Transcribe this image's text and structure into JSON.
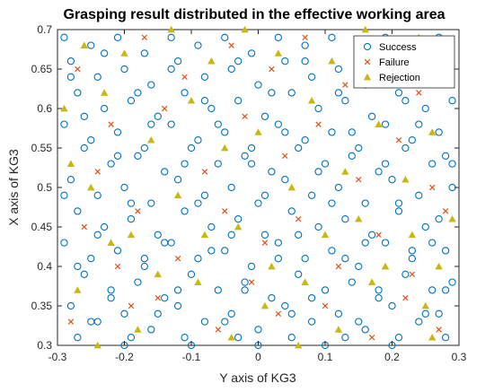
{
  "chart_data": {
    "type": "scatter",
    "title": "Grasping result distributed in the effective working area",
    "xlabel": "Y axis of KG3",
    "ylabel": "X axis of KG3",
    "xlim": [
      -0.3,
      0.3
    ],
    "ylim": [
      0.3,
      0.7
    ],
    "xticks": [
      "-0.3",
      "-0.2",
      "-0.1",
      "0",
      "0.1",
      "0.2",
      "0.3"
    ],
    "yticks": [
      "0.3",
      "0.35",
      "0.4",
      "0.45",
      "0.5",
      "0.55",
      "0.6",
      "0.65",
      "0.7"
    ],
    "grid": false,
    "legend_position": "top-right",
    "series": [
      {
        "name": "Success",
        "marker": "circle",
        "color": "#0072BD",
        "points": [
          [
            -0.29,
            0.69
          ],
          [
            -0.28,
            0.66
          ],
          [
            -0.27,
            0.62
          ],
          [
            -0.29,
            0.58
          ],
          [
            -0.26,
            0.55
          ],
          [
            -0.28,
            0.51
          ],
          [
            -0.27,
            0.47
          ],
          [
            -0.29,
            0.43
          ],
          [
            -0.26,
            0.39
          ],
          [
            -0.28,
            0.35
          ],
          [
            -0.27,
            0.31
          ],
          [
            -0.25,
            0.68
          ],
          [
            -0.24,
            0.64
          ],
          [
            -0.23,
            0.6
          ],
          [
            -0.25,
            0.56
          ],
          [
            -0.22,
            0.53
          ],
          [
            -0.24,
            0.49
          ],
          [
            -0.23,
            0.45
          ],
          [
            -0.25,
            0.41
          ],
          [
            -0.22,
            0.37
          ],
          [
            -0.24,
            0.33
          ],
          [
            -0.21,
            0.69
          ],
          [
            -0.2,
            0.65
          ],
          [
            -0.19,
            0.61
          ],
          [
            -0.21,
            0.57
          ],
          [
            -0.18,
            0.54
          ],
          [
            -0.2,
            0.5
          ],
          [
            -0.19,
            0.46
          ],
          [
            -0.21,
            0.42
          ],
          [
            -0.18,
            0.38
          ],
          [
            -0.2,
            0.34
          ],
          [
            -0.19,
            0.31
          ],
          [
            -0.17,
            0.67
          ],
          [
            -0.16,
            0.63
          ],
          [
            -0.15,
            0.59
          ],
          [
            -0.17,
            0.55
          ],
          [
            -0.14,
            0.52
          ],
          [
            -0.16,
            0.48
          ],
          [
            -0.15,
            0.44
          ],
          [
            -0.17,
            0.4
          ],
          [
            -0.14,
            0.36
          ],
          [
            -0.16,
            0.32
          ],
          [
            -0.13,
            0.69
          ],
          [
            -0.12,
            0.66
          ],
          [
            -0.11,
            0.62
          ],
          [
            -0.13,
            0.58
          ],
          [
            -0.1,
            0.55
          ],
          [
            -0.12,
            0.51
          ],
          [
            -0.11,
            0.47
          ],
          [
            -0.13,
            0.43
          ],
          [
            -0.1,
            0.39
          ],
          [
            -0.12,
            0.35
          ],
          [
            -0.11,
            0.31
          ],
          [
            -0.09,
            0.68
          ],
          [
            -0.08,
            0.64
          ],
          [
            -0.07,
            0.6
          ],
          [
            -0.09,
            0.56
          ],
          [
            -0.06,
            0.53
          ],
          [
            -0.08,
            0.49
          ],
          [
            -0.07,
            0.45
          ],
          [
            -0.09,
            0.41
          ],
          [
            -0.06,
            0.37
          ],
          [
            -0.08,
            0.33
          ],
          [
            -0.05,
            0.69
          ],
          [
            -0.04,
            0.65
          ],
          [
            -0.03,
            0.61
          ],
          [
            -0.05,
            0.57
          ],
          [
            -0.02,
            0.54
          ],
          [
            -0.04,
            0.5
          ],
          [
            -0.03,
            0.46
          ],
          [
            -0.05,
            0.42
          ],
          [
            -0.02,
            0.38
          ],
          [
            -0.04,
            0.34
          ],
          [
            -0.03,
            0.31
          ],
          [
            -0.01,
            0.67
          ],
          [
            0.0,
            0.63
          ],
          [
            0.01,
            0.59
          ],
          [
            -0.01,
            0.55
          ],
          [
            0.02,
            0.52
          ],
          [
            0.0,
            0.48
          ],
          [
            0.01,
            0.44
          ],
          [
            -0.01,
            0.4
          ],
          [
            0.02,
            0.36
          ],
          [
            0.0,
            0.32
          ],
          [
            0.03,
            0.69
          ],
          [
            0.04,
            0.66
          ],
          [
            0.05,
            0.62
          ],
          [
            0.03,
            0.58
          ],
          [
            0.06,
            0.55
          ],
          [
            0.04,
            0.51
          ],
          [
            0.05,
            0.47
          ],
          [
            0.03,
            0.43
          ],
          [
            0.06,
            0.39
          ],
          [
            0.04,
            0.35
          ],
          [
            0.05,
            0.31
          ],
          [
            0.07,
            0.68
          ],
          [
            0.08,
            0.64
          ],
          [
            0.09,
            0.6
          ],
          [
            0.07,
            0.56
          ],
          [
            0.1,
            0.53
          ],
          [
            0.08,
            0.49
          ],
          [
            0.09,
            0.45
          ],
          [
            0.07,
            0.41
          ],
          [
            0.1,
            0.37
          ],
          [
            0.08,
            0.33
          ],
          [
            0.11,
            0.69
          ],
          [
            0.12,
            0.65
          ],
          [
            0.13,
            0.61
          ],
          [
            0.11,
            0.57
          ],
          [
            0.14,
            0.54
          ],
          [
            0.12,
            0.5
          ],
          [
            0.13,
            0.46
          ],
          [
            0.11,
            0.42
          ],
          [
            0.14,
            0.38
          ],
          [
            0.12,
            0.34
          ],
          [
            0.13,
            0.31
          ],
          [
            0.15,
            0.67
          ],
          [
            0.16,
            0.63
          ],
          [
            0.17,
            0.59
          ],
          [
            0.15,
            0.55
          ],
          [
            0.18,
            0.52
          ],
          [
            0.16,
            0.48
          ],
          [
            0.17,
            0.44
          ],
          [
            0.15,
            0.4
          ],
          [
            0.18,
            0.36
          ],
          [
            0.16,
            0.32
          ],
          [
            0.19,
            0.69
          ],
          [
            0.2,
            0.66
          ],
          [
            0.21,
            0.62
          ],
          [
            0.19,
            0.58
          ],
          [
            0.22,
            0.55
          ],
          [
            0.2,
            0.51
          ],
          [
            0.21,
            0.47
          ],
          [
            0.19,
            0.43
          ],
          [
            0.22,
            0.39
          ],
          [
            0.2,
            0.35
          ],
          [
            0.21,
            0.31
          ],
          [
            0.23,
            0.68
          ],
          [
            0.24,
            0.64
          ],
          [
            0.25,
            0.6
          ],
          [
            0.23,
            0.56
          ],
          [
            0.26,
            0.53
          ],
          [
            0.24,
            0.49
          ],
          [
            0.25,
            0.45
          ],
          [
            0.23,
            0.41
          ],
          [
            0.26,
            0.37
          ],
          [
            0.24,
            0.33
          ],
          [
            0.27,
            0.69
          ],
          [
            0.28,
            0.65
          ],
          [
            0.29,
            0.61
          ],
          [
            0.27,
            0.57
          ],
          [
            0.28,
            0.54
          ],
          [
            0.29,
            0.5
          ],
          [
            0.27,
            0.46
          ],
          [
            0.28,
            0.42
          ],
          [
            0.29,
            0.38
          ],
          [
            0.27,
            0.34
          ],
          [
            0.28,
            0.31
          ],
          [
            -0.28,
            0.64
          ],
          [
            -0.23,
            0.67
          ],
          [
            -0.18,
            0.62
          ],
          [
            -0.13,
            0.65
          ],
          [
            -0.08,
            0.61
          ],
          [
            -0.03,
            0.66
          ],
          [
            0.02,
            0.62
          ],
          [
            0.07,
            0.66
          ],
          [
            0.12,
            0.62
          ],
          [
            0.17,
            0.65
          ],
          [
            0.22,
            0.61
          ],
          [
            0.27,
            0.66
          ],
          [
            -0.26,
            0.59
          ],
          [
            -0.21,
            0.54
          ],
          [
            -0.16,
            0.58
          ],
          [
            -0.11,
            0.53
          ],
          [
            -0.06,
            0.58
          ],
          [
            -0.01,
            0.53
          ],
          [
            0.04,
            0.57
          ],
          [
            0.09,
            0.52
          ],
          [
            0.14,
            0.57
          ],
          [
            0.19,
            0.53
          ],
          [
            0.24,
            0.58
          ],
          [
            0.29,
            0.53
          ],
          [
            -0.29,
            0.49
          ],
          [
            -0.24,
            0.44
          ],
          [
            -0.19,
            0.48
          ],
          [
            -0.14,
            0.43
          ],
          [
            -0.09,
            0.48
          ],
          [
            -0.04,
            0.44
          ],
          [
            0.01,
            0.49
          ],
          [
            0.06,
            0.44
          ],
          [
            0.11,
            0.48
          ],
          [
            0.16,
            0.43
          ],
          [
            0.21,
            0.48
          ],
          [
            0.26,
            0.43
          ],
          [
            -0.27,
            0.4
          ],
          [
            -0.22,
            0.36
          ],
          [
            -0.17,
            0.41
          ],
          [
            -0.12,
            0.37
          ],
          [
            -0.07,
            0.42
          ],
          [
            -0.02,
            0.37
          ],
          [
            0.03,
            0.41
          ],
          [
            0.08,
            0.36
          ],
          [
            0.13,
            0.41
          ],
          [
            0.18,
            0.37
          ],
          [
            0.23,
            0.42
          ],
          [
            0.28,
            0.37
          ],
          [
            -0.25,
            0.33
          ],
          [
            -0.2,
            0.3
          ],
          [
            -0.15,
            0.34
          ],
          [
            -0.1,
            0.3
          ],
          [
            -0.05,
            0.33
          ],
          [
            0.0,
            0.3
          ],
          [
            0.05,
            0.34
          ],
          [
            0.1,
            0.3
          ],
          [
            0.15,
            0.33
          ],
          [
            0.2,
            0.3
          ],
          [
            0.25,
            0.34
          ]
        ]
      },
      {
        "name": "Failure",
        "marker": "x",
        "color": "#D95319",
        "points": [
          [
            -0.27,
            0.65
          ],
          [
            -0.22,
            0.58
          ],
          [
            -0.26,
            0.45
          ],
          [
            -0.21,
            0.4
          ],
          [
            -0.28,
            0.33
          ],
          [
            -0.17,
            0.69
          ],
          [
            -0.14,
            0.6
          ],
          [
            -0.18,
            0.47
          ],
          [
            -0.15,
            0.36
          ],
          [
            -0.11,
            0.64
          ],
          [
            -0.08,
            0.52
          ],
          [
            -0.12,
            0.41
          ],
          [
            -0.06,
            0.32
          ],
          [
            -0.04,
            0.68
          ],
          [
            -0.02,
            0.59
          ],
          [
            -0.05,
            0.47
          ],
          [
            -0.01,
            0.38
          ],
          [
            0.02,
            0.65
          ],
          [
            0.04,
            0.54
          ],
          [
            0.01,
            0.43
          ],
          [
            0.03,
            0.34
          ],
          [
            0.07,
            0.69
          ],
          [
            0.09,
            0.58
          ],
          [
            0.06,
            0.46
          ],
          [
            0.1,
            0.35
          ],
          [
            0.13,
            0.63
          ],
          [
            0.15,
            0.51
          ],
          [
            0.12,
            0.4
          ],
          [
            0.17,
            0.31
          ],
          [
            0.19,
            0.67
          ],
          [
            0.21,
            0.56
          ],
          [
            0.18,
            0.44
          ],
          [
            0.22,
            0.36
          ],
          [
            0.24,
            0.62
          ],
          [
            0.26,
            0.5
          ],
          [
            0.23,
            0.39
          ],
          [
            0.28,
            0.47
          ],
          [
            0.27,
            0.32
          ],
          [
            -0.24,
            0.52
          ],
          [
            -0.19,
            0.35
          ]
        ]
      },
      {
        "name": "Rejection",
        "marker": "triangle",
        "color": "#C7B814",
        "points": [
          [
            -0.29,
            0.6
          ],
          [
            -0.26,
            0.68
          ],
          [
            -0.23,
            0.62
          ],
          [
            -0.25,
            0.5
          ],
          [
            -0.22,
            0.43
          ],
          [
            -0.27,
            0.37
          ],
          [
            -0.24,
            0.3
          ],
          [
            -0.2,
            0.67
          ],
          [
            -0.16,
            0.56
          ],
          [
            -0.19,
            0.44
          ],
          [
            -0.15,
            0.39
          ],
          [
            -0.13,
            0.7
          ],
          [
            -0.1,
            0.61
          ],
          [
            -0.12,
            0.49
          ],
          [
            -0.09,
            0.38
          ],
          [
            -0.07,
            0.66
          ],
          [
            -0.05,
            0.55
          ],
          [
            -0.08,
            0.44
          ],
          [
            -0.04,
            0.31
          ],
          [
            -0.02,
            0.7
          ],
          [
            0.0,
            0.57
          ],
          [
            -0.03,
            0.45
          ],
          [
            0.01,
            0.35
          ],
          [
            0.03,
            0.67
          ],
          [
            0.05,
            0.5
          ],
          [
            0.02,
            0.4
          ],
          [
            0.06,
            0.3
          ],
          [
            0.08,
            0.61
          ],
          [
            0.1,
            0.44
          ],
          [
            0.07,
            0.38
          ],
          [
            0.11,
            0.66
          ],
          [
            0.13,
            0.52
          ],
          [
            0.12,
            0.32
          ],
          [
            0.16,
            0.7
          ],
          [
            0.18,
            0.58
          ],
          [
            0.15,
            0.46
          ],
          [
            0.17,
            0.38
          ],
          [
            0.2,
            0.63
          ],
          [
            0.22,
            0.51
          ],
          [
            0.19,
            0.4
          ],
          [
            0.24,
            0.69
          ],
          [
            0.26,
            0.57
          ],
          [
            0.23,
            0.44
          ],
          [
            0.25,
            0.35
          ],
          [
            0.28,
            0.63
          ],
          [
            0.29,
            0.46
          ],
          [
            0.27,
            0.4
          ],
          [
            0.26,
            0.31
          ],
          [
            -0.28,
            0.53
          ],
          [
            -0.18,
            0.32
          ]
        ]
      }
    ]
  }
}
